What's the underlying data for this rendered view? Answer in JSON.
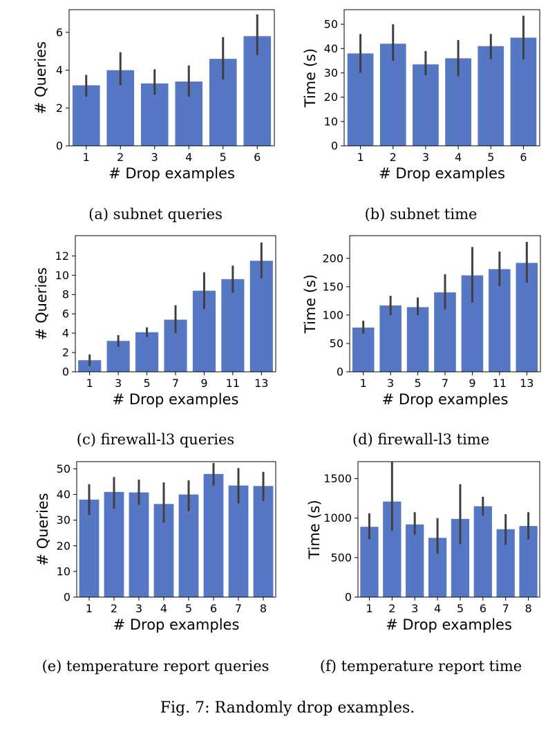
{
  "figure": {
    "caption": "Fig. 7: Randomly drop examples."
  },
  "chart_data": [
    {
      "type": "bar",
      "caption": "(a) subnet queries",
      "xlabel": "# Drop examples",
      "ylabel": "# Queries",
      "categories": [
        "1",
        "2",
        "3",
        "4",
        "5",
        "6"
      ],
      "values": [
        3.2,
        4.0,
        3.3,
        3.4,
        4.6,
        5.8
      ],
      "error_low": [
        2.6,
        3.2,
        2.7,
        2.6,
        3.5,
        4.8
      ],
      "error_high": [
        3.75,
        4.95,
        4.05,
        4.25,
        5.75,
        6.95
      ],
      "ylim": [
        0,
        7.2
      ],
      "yticks": [
        0,
        2,
        4,
        6
      ],
      "bar_color": "#5677c4",
      "error_color": "#3f3f3f"
    },
    {
      "type": "bar",
      "caption": "(b) subnet time",
      "xlabel": "# Drop examples",
      "ylabel": "Time (s)",
      "categories": [
        "1",
        "2",
        "3",
        "4",
        "5",
        "6"
      ],
      "values": [
        38,
        42,
        33.5,
        36,
        41,
        44.5
      ],
      "error_low": [
        30,
        35,
        29,
        28.5,
        35.5,
        35.5
      ],
      "error_high": [
        46,
        50,
        39,
        43.5,
        46,
        53.5
      ],
      "ylim": [
        0,
        56
      ],
      "yticks": [
        0,
        10,
        20,
        30,
        40,
        50
      ],
      "bar_color": "#5677c4",
      "error_color": "#3f3f3f"
    },
    {
      "type": "bar",
      "caption": "(c) firewall-l3 queries",
      "xlabel": "# Drop examples",
      "ylabel": "# Queries",
      "categories": [
        "1",
        "3",
        "5",
        "7",
        "9",
        "11",
        "13"
      ],
      "values": [
        1.2,
        3.2,
        4.1,
        5.4,
        8.4,
        9.6,
        11.5
      ],
      "error_low": [
        0.6,
        2.6,
        3.6,
        4.0,
        6.5,
        8.2,
        9.7
      ],
      "error_high": [
        1.8,
        3.8,
        4.6,
        6.9,
        10.3,
        11.0,
        13.4
      ],
      "ylim": [
        0,
        14.1
      ],
      "yticks": [
        0,
        2,
        4,
        6,
        8,
        10,
        12
      ],
      "bar_color": "#5677c4",
      "error_color": "#3f3f3f"
    },
    {
      "type": "bar",
      "caption": "(d) firewall-l3 time",
      "xlabel": "# Drop examples",
      "ylabel": "Time (s)",
      "categories": [
        "1",
        "3",
        "5",
        "7",
        "9",
        "11",
        "13"
      ],
      "values": [
        78,
        117,
        114,
        140,
        170,
        181,
        192
      ],
      "error_low": [
        67,
        100,
        100,
        110,
        122,
        151,
        157
      ],
      "error_high": [
        90,
        134,
        131,
        172,
        220,
        212,
        229
      ],
      "ylim": [
        0,
        240
      ],
      "yticks": [
        0,
        50,
        100,
        150,
        200
      ],
      "bar_color": "#5677c4",
      "error_color": "#3f3f3f"
    },
    {
      "type": "bar",
      "caption": "(e) temperature report queries",
      "xlabel": "# Drop examples",
      "ylabel": "# Queries",
      "categories": [
        "1",
        "2",
        "3",
        "4",
        "5",
        "6",
        "7",
        "8"
      ],
      "values": [
        38,
        41,
        40.8,
        36.3,
        40,
        48,
        43.5,
        43.3
      ],
      "error_low": [
        32,
        34.5,
        36,
        29,
        33.5,
        43.5,
        36.5,
        37.5
      ],
      "error_high": [
        44,
        46.8,
        45.8,
        44.7,
        45.5,
        52.3,
        50.3,
        48.8
      ],
      "ylim": [
        0,
        52.8
      ],
      "yticks": [
        0,
        10,
        20,
        30,
        40,
        50
      ],
      "bar_color": "#5677c4",
      "error_color": "#3f3f3f"
    },
    {
      "type": "bar",
      "caption": "(f) temperature report time",
      "xlabel": "# Drop examples",
      "ylabel": "Time (s)",
      "categories": [
        "1",
        "2",
        "3",
        "4",
        "5",
        "6",
        "7",
        "8"
      ],
      "values": [
        890,
        1210,
        920,
        750,
        990,
        1150,
        860,
        900
      ],
      "error_low": [
        730,
        840,
        790,
        550,
        670,
        1030,
        660,
        730
      ],
      "error_high": [
        1060,
        1710,
        1075,
        1000,
        1430,
        1270,
        1050,
        1075
      ],
      "ylim": [
        0,
        1715
      ],
      "yticks": [
        0,
        500,
        1000,
        1500
      ],
      "bar_color": "#5677c4",
      "error_color": "#3f3f3f"
    }
  ]
}
